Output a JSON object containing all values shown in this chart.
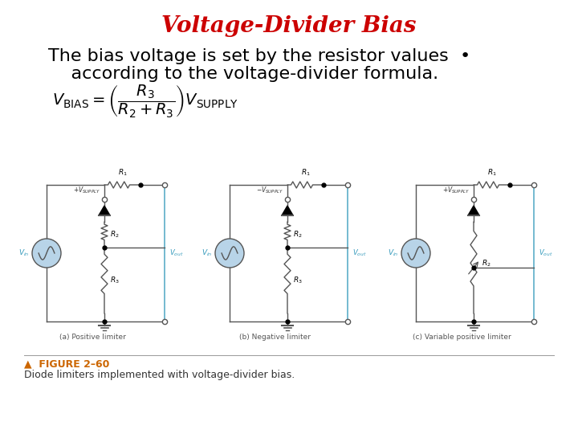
{
  "title": "Voltage-Divider Bias",
  "title_color": "#cc0000",
  "title_fontsize": 20,
  "body_line1": "The bias voltage is set by the resistor values  •",
  "body_line2": "    according to the voltage-divider formula.",
  "body_fontsize": 16,
  "formula_text": "$V_{\\mathrm{BIAS}} = \\left(\\dfrac{R_3}{R_2 + R_3}\\right)V_{\\mathrm{SUPPLY}}$",
  "formula_fontsize": 14,
  "fig_caption_label": "▲  FIGURE 2–60",
  "fig_caption_label_color": "#cc6600",
  "fig_caption_text": "Diode limiters implemented with voltage-divider bias.",
  "fig_caption_fontsize": 9,
  "background_color": "#ffffff",
  "line_color": "#555555",
  "blue_fill": "#b8d4e8",
  "cyan_color": "#3399bb",
  "circuit_a_label": "(a) Positive limiter",
  "circuit_b_label": "(b) Negative limiter",
  "circuit_c_label": "(c) Variable positive limiter"
}
